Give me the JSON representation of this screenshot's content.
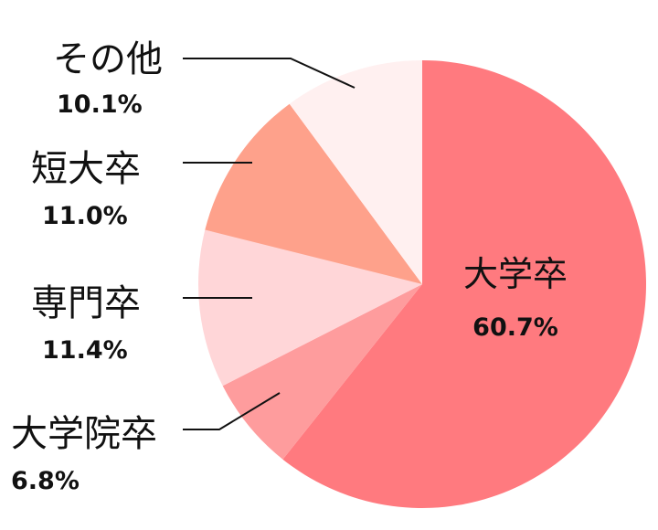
{
  "chart_data": {
    "type": "pie",
    "title": "",
    "start_angle_deg": 0,
    "direction": "clockwise",
    "slices": [
      {
        "label": "大学卒",
        "value": 60.7,
        "value_label": "60.7%",
        "color": "#ff7a7f"
      },
      {
        "label": "大学院卒",
        "value": 6.8,
        "value_label": "6.8%",
        "color": "#fe9c9d"
      },
      {
        "label": "専門卒",
        "value": 11.4,
        "value_label": "11.4%",
        "color": "#ffd6d8"
      },
      {
        "label": "短大卒",
        "value": 11.0,
        "value_label": "11.0%",
        "color": "#fea18b"
      },
      {
        "label": "その他",
        "value": 10.1,
        "value_label": "10.1%",
        "color": "#fff0f0"
      }
    ]
  }
}
